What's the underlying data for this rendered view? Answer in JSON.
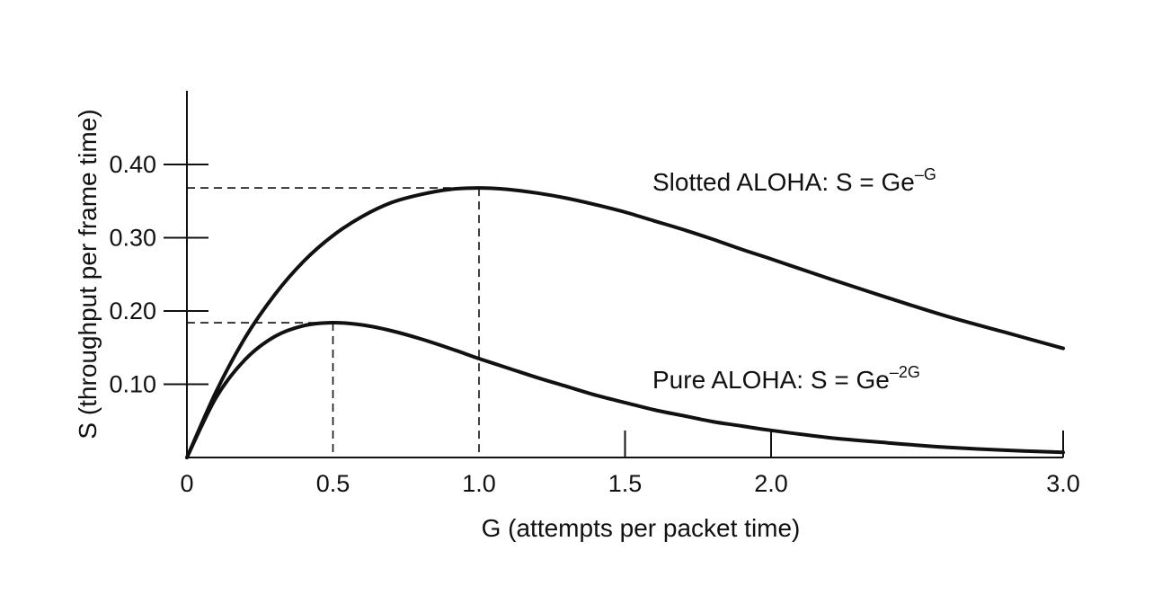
{
  "chart_data": {
    "type": "line",
    "xlabel": "G (attempts per packet time)",
    "ylabel": "S (throughput per frame time)",
    "xlim": [
      0,
      3.0
    ],
    "ylim": [
      0,
      0.5
    ],
    "x_ticks": [
      {
        "value": 0,
        "label": "0"
      },
      {
        "value": 0.5,
        "label": "0.5"
      },
      {
        "value": 1.0,
        "label": "1.0"
      },
      {
        "value": 1.5,
        "label": "1.5"
      },
      {
        "value": 2.0,
        "label": "2.0"
      },
      {
        "value": 3.0,
        "label": "3.0"
      }
    ],
    "y_ticks": [
      {
        "value": 0.1,
        "label": "0.10"
      },
      {
        "value": 0.2,
        "label": "0.20"
      },
      {
        "value": 0.3,
        "label": "0.30"
      },
      {
        "value": 0.4,
        "label": "0.40"
      }
    ],
    "grid": false,
    "line_color": "#111111",
    "series": [
      {
        "label_text": "Slotted ALOHA: S = Ge",
        "label_exponent": "–G",
        "x": [
          0,
          0.1,
          0.2,
          0.3,
          0.4,
          0.5,
          0.6,
          0.7,
          0.8,
          0.9,
          1.0,
          1.1,
          1.2,
          1.3,
          1.4,
          1.5,
          1.6,
          1.7,
          1.8,
          1.9,
          2.0,
          2.2,
          2.4,
          2.6,
          2.8,
          3.0
        ],
        "y": [
          0,
          0.09,
          0.164,
          0.222,
          0.268,
          0.303,
          0.329,
          0.348,
          0.359,
          0.366,
          0.368,
          0.366,
          0.361,
          0.354,
          0.345,
          0.335,
          0.323,
          0.311,
          0.298,
          0.284,
          0.271,
          0.244,
          0.218,
          0.193,
          0.171,
          0.149
        ]
      },
      {
        "label_text": "Pure ALOHA: S = Ge",
        "label_exponent": "–2G",
        "x": [
          0,
          0.1,
          0.2,
          0.3,
          0.4,
          0.5,
          0.6,
          0.7,
          0.8,
          0.9,
          1.0,
          1.1,
          1.2,
          1.3,
          1.4,
          1.5,
          1.6,
          1.7,
          1.8,
          1.9,
          2.0,
          2.2,
          2.4,
          2.6,
          2.8,
          3.0
        ],
        "y": [
          0,
          0.082,
          0.134,
          0.165,
          0.18,
          0.184,
          0.181,
          0.173,
          0.162,
          0.149,
          0.135,
          0.122,
          0.109,
          0.097,
          0.085,
          0.075,
          0.065,
          0.057,
          0.049,
          0.043,
          0.037,
          0.027,
          0.02,
          0.014,
          0.01,
          0.007
        ]
      }
    ],
    "reference_lines": [
      {
        "x": 0.5,
        "y": 0.184
      },
      {
        "x": 1.0,
        "y": 0.368
      }
    ]
  }
}
